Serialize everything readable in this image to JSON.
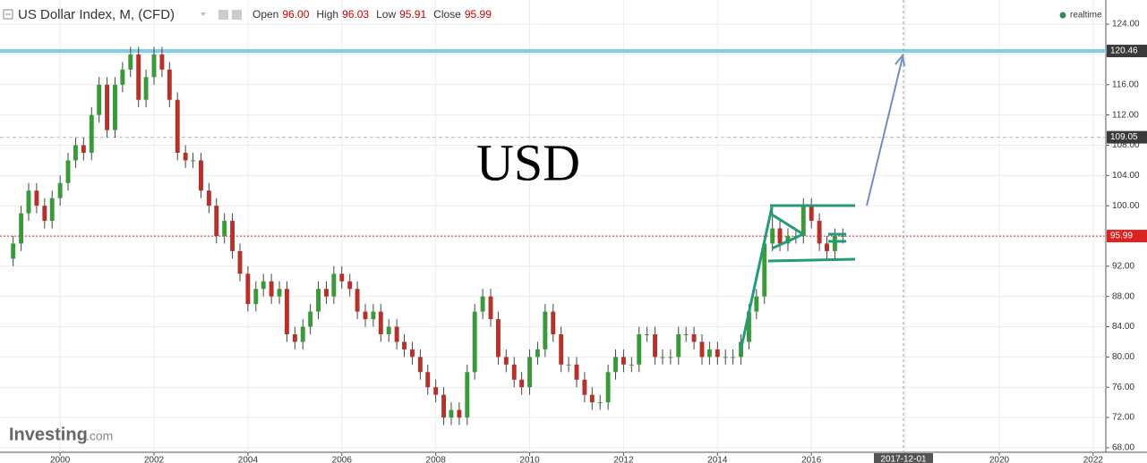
{
  "chart_data": {
    "type": "candlestick",
    "title": "US Dollar Index, M, (CFD)",
    "header": {
      "labels": [
        "Open",
        "High",
        "Low",
        "Close"
      ],
      "values": [
        "96.00",
        "96.03",
        "95.91",
        "95.99"
      ]
    },
    "status": "realtime",
    "annotation": "USD",
    "brand": "Investing",
    "brand_suffix": ".com",
    "marker_date": "2017-12-01",
    "up_color": "#3a9a3a",
    "down_color": "#b5312a",
    "xlim": [
      1998.72,
      2022.27
    ],
    "xticks": [
      2000,
      2002,
      2004,
      2006,
      2008,
      2010,
      2012,
      2014,
      2016,
      2018,
      2020,
      2022
    ],
    "ylim": [
      67.4,
      127.2
    ],
    "yticks": [
      {
        "value": 68,
        "label": "68.00"
      },
      {
        "value": 72,
        "label": "72.00"
      },
      {
        "value": 76,
        "label": "76.00"
      },
      {
        "value": 80,
        "label": "80.00"
      },
      {
        "value": 84,
        "label": "84.00"
      },
      {
        "value": 88,
        "label": "88.00"
      },
      {
        "value": 92,
        "label": "92.00"
      },
      {
        "value": 96,
        "label": "96.00"
      },
      {
        "value": 100,
        "label": "100.00"
      },
      {
        "value": 104,
        "label": "104.00"
      },
      {
        "value": 108,
        "label": "108.00"
      },
      {
        "value": 112,
        "label": "112.00"
      },
      {
        "value": 116,
        "label": "116.00"
      },
      {
        "value": 120,
        "label": "120.00"
      },
      {
        "value": 124,
        "label": "124.00"
      }
    ],
    "grid": true,
    "hlines": [
      {
        "value": 120.46,
        "color": "#7fd0e6"
      },
      {
        "value": 109.05,
        "color": "#bbbbbb"
      },
      {
        "value": 95.99,
        "color": "#dd2222"
      }
    ],
    "x": [
      1999,
      1999.17,
      1999.33,
      1999.5,
      1999.67,
      1999.83,
      2000,
      2000.17,
      2000.33,
      2000.5,
      2000.67,
      2000.83,
      2001,
      2001.17,
      2001.33,
      2001.5,
      2001.67,
      2001.83,
      2002,
      2002.17,
      2002.33,
      2002.5,
      2002.67,
      2002.83,
      2003,
      2003.17,
      2003.33,
      2003.5,
      2003.67,
      2003.83,
      2004,
      2004.17,
      2004.33,
      2004.5,
      2004.67,
      2004.83,
      2005,
      2005.17,
      2005.33,
      2005.5,
      2005.67,
      2005.83,
      2006,
      2006.17,
      2006.33,
      2006.5,
      2006.67,
      2006.83,
      2007,
      2007.17,
      2007.33,
      2007.5,
      2007.67,
      2007.83,
      2008,
      2008.17,
      2008.33,
      2008.5,
      2008.67,
      2008.83,
      2009,
      2009.17,
      2009.33,
      2009.5,
      2009.67,
      2009.83,
      2010,
      2010.17,
      2010.33,
      2010.5,
      2010.67,
      2010.83,
      2011,
      2011.17,
      2011.33,
      2011.5,
      2011.67,
      2011.83,
      2012,
      2012.17,
      2012.33,
      2012.5,
      2012.67,
      2012.83,
      2013,
      2013.17,
      2013.33,
      2013.5,
      2013.67,
      2013.83,
      2014,
      2014.17,
      2014.33,
      2014.5,
      2014.67,
      2014.83,
      2015,
      2015.17,
      2015.33,
      2015.5,
      2015.67,
      2015.83,
      2016,
      2016.17,
      2016.33,
      2016.5,
      2016.67
    ],
    "ohlc": [
      [
        93,
        96,
        92,
        95
      ],
      [
        95,
        100,
        94,
        99
      ],
      [
        99,
        103,
        98,
        102
      ],
      [
        102,
        103,
        99,
        100
      ],
      [
        100,
        101,
        97,
        98
      ],
      [
        98,
        102,
        97,
        101
      ],
      [
        101,
        104,
        100,
        103
      ],
      [
        103,
        107,
        102,
        106
      ],
      [
        106,
        109,
        105,
        108
      ],
      [
        108,
        109,
        106,
        107
      ],
      [
        107,
        113,
        106,
        112
      ],
      [
        112,
        117,
        111,
        116
      ],
      [
        116,
        117,
        109,
        110
      ],
      [
        110,
        117,
        109,
        116
      ],
      [
        116,
        119,
        115,
        118
      ],
      [
        118,
        121,
        117,
        120
      ],
      [
        120,
        121,
        113,
        114
      ],
      [
        114,
        118,
        113,
        117
      ],
      [
        117,
        121,
        116,
        120
      ],
      [
        120,
        121,
        117,
        118
      ],
      [
        118,
        119,
        113,
        114
      ],
      [
        114,
        115,
        106,
        107
      ],
      [
        107,
        108,
        105,
        106
      ],
      [
        106,
        107,
        105,
        106
      ],
      [
        106,
        107,
        101,
        102
      ],
      [
        102,
        103,
        99,
        100
      ],
      [
        100,
        101,
        95,
        96
      ],
      [
        96,
        99,
        95,
        98
      ],
      [
        98,
        99,
        93,
        94
      ],
      [
        94,
        95,
        90,
        91
      ],
      [
        91,
        92,
        86,
        87
      ],
      [
        87,
        90,
        86,
        89
      ],
      [
        89,
        91,
        88,
        90
      ],
      [
        90,
        91,
        87,
        88
      ],
      [
        88,
        90,
        87,
        89
      ],
      [
        89,
        90,
        82,
        83
      ],
      [
        83,
        84,
        81,
        82
      ],
      [
        82,
        85,
        81,
        84
      ],
      [
        84,
        87,
        83,
        86
      ],
      [
        86,
        90,
        85,
        89
      ],
      [
        89,
        90,
        87,
        88
      ],
      [
        88,
        92,
        87,
        91
      ],
      [
        91,
        92,
        89,
        90
      ],
      [
        90,
        91,
        88,
        89
      ],
      [
        89,
        90,
        85,
        86
      ],
      [
        86,
        87,
        84,
        85
      ],
      [
        85,
        87,
        84,
        86
      ],
      [
        86,
        87,
        82,
        83
      ],
      [
        83,
        85,
        82,
        84
      ],
      [
        84,
        85,
        81,
        82
      ],
      [
        82,
        83,
        80,
        81
      ],
      [
        81,
        82,
        79,
        80
      ],
      [
        80,
        81,
        77,
        78
      ],
      [
        78,
        79,
        75,
        76
      ],
      [
        76,
        77,
        74,
        75
      ],
      [
        75,
        76,
        71,
        72
      ],
      [
        72,
        74,
        71,
        73
      ],
      [
        73,
        74,
        71,
        72
      ],
      [
        72,
        79,
        71,
        78
      ],
      [
        78,
        87,
        77,
        86
      ],
      [
        86,
        89,
        85,
        88
      ],
      [
        88,
        89,
        84,
        85
      ],
      [
        85,
        86,
        79,
        80
      ],
      [
        80,
        81,
        78,
        79
      ],
      [
        79,
        80,
        76,
        77
      ],
      [
        77,
        78,
        75,
        76
      ],
      [
        76,
        81,
        75,
        80
      ],
      [
        80,
        82,
        79,
        81
      ],
      [
        81,
        87,
        80,
        86
      ],
      [
        86,
        87,
        82,
        83
      ],
      [
        83,
        84,
        78,
        79
      ],
      [
        79,
        80,
        78,
        79
      ],
      [
        79,
        80,
        76,
        77
      ],
      [
        77,
        78,
        74,
        75
      ],
      [
        75,
        76,
        73,
        74
      ],
      [
        74,
        75,
        73,
        74
      ],
      [
        74,
        79,
        73,
        78
      ],
      [
        78,
        81,
        77,
        80
      ],
      [
        80,
        81,
        78,
        79
      ],
      [
        79,
        80,
        78,
        79
      ],
      [
        79,
        84,
        78,
        83
      ],
      [
        83,
        84,
        82,
        83
      ],
      [
        83,
        84,
        79,
        80
      ],
      [
        80,
        81,
        79,
        80
      ],
      [
        80,
        81,
        79,
        80
      ],
      [
        80,
        84,
        79,
        83
      ],
      [
        83,
        84,
        82,
        83
      ],
      [
        83,
        84,
        81,
        82
      ],
      [
        82,
        83,
        79,
        80
      ],
      [
        80,
        82,
        79,
        81
      ],
      [
        81,
        82,
        79,
        80
      ],
      [
        80,
        81,
        79,
        80
      ],
      [
        80,
        81,
        79,
        80
      ],
      [
        80,
        83,
        79,
        82
      ],
      [
        82,
        87,
        81,
        86
      ],
      [
        86,
        89,
        85,
        88
      ],
      [
        88,
        96,
        87,
        95
      ],
      [
        95,
        100,
        94,
        97
      ],
      [
        97,
        98,
        94,
        95
      ],
      [
        95,
        97,
        94,
        96
      ],
      [
        96,
        97,
        95,
        96
      ],
      [
        96,
        101,
        95,
        100
      ],
      [
        100,
        101,
        97,
        98
      ],
      [
        98,
        99,
        94,
        95
      ],
      [
        95,
        96,
        93,
        94
      ],
      [
        94,
        97,
        93,
        96
      ],
      [
        96,
        97,
        95,
        96
      ]
    ]
  }
}
